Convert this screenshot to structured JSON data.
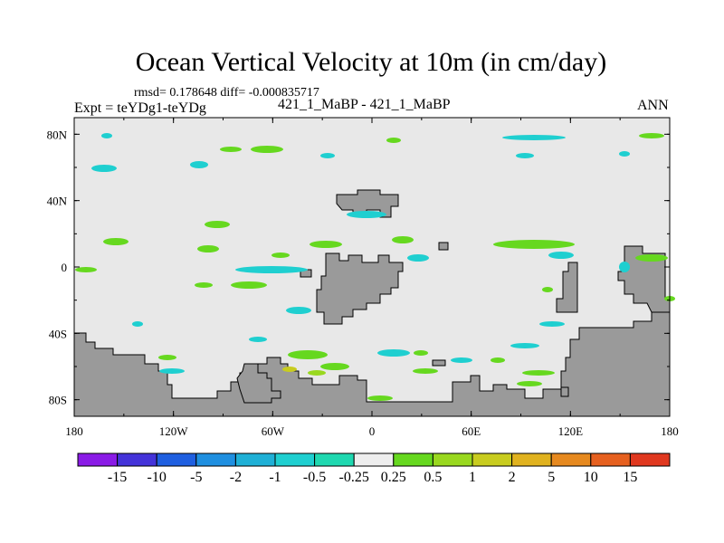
{
  "chart_data": {
    "type": "heatmap",
    "title": "Ocean Vertical Velocity at 10m (in cm/day)",
    "stats_text": "rmsd= 0.178648 diff= -0.000835717",
    "left_label": "Expt = teYDg1-teYDg",
    "center_label": "421_1_MaBP - 421_1_MaBP",
    "right_label": "ANN",
    "x_ticks": [
      "180",
      "120W",
      "60W",
      "0",
      "60E",
      "120E",
      "180"
    ],
    "y_ticks": [
      "80N",
      "40N",
      "0",
      "40S",
      "80S"
    ],
    "xlim": [
      -180,
      180
    ],
    "ylim": [
      -90,
      90
    ],
    "colorbar": {
      "labels": [
        "-15",
        "-10",
        "-5",
        "-2",
        "-1",
        "-0.5",
        "-0.25",
        "0.25",
        "0.5",
        "1",
        "2",
        "5",
        "10",
        "15"
      ],
      "colors": [
        "#8a1be6",
        "#4433d9",
        "#1f5fe0",
        "#1f8fe0",
        "#1fb0d6",
        "#1fcfd0",
        "#1fd8b0",
        "#eeeeee",
        "#66d81f",
        "#99d81f",
        "#c8cc1f",
        "#e0b21f",
        "#e6891f",
        "#e6601f",
        "#e0381f"
      ]
    },
    "colors": {
      "background_field": "#e8e8e8",
      "land": "#9a9a9a"
    }
  }
}
